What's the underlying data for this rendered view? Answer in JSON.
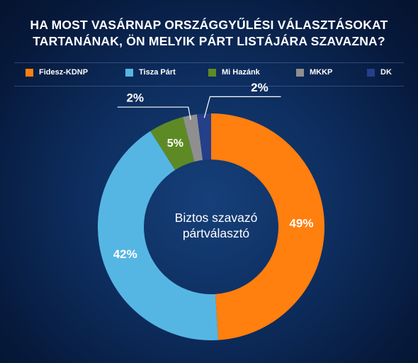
{
  "title_lines": [
    "HA MOST VASÁRNAP ORSZÁGGYŰLÉSI VÁLASZTÁSOKAT",
    "TARTANÁNAK, ÖN MELYIK PÁRT LISTÁJÁRA SZAVAZNA?"
  ],
  "center_label_lines": [
    "Biztos szavazó",
    "pártválasztó"
  ],
  "chart_data": {
    "type": "pie",
    "title": "HA MOST VASÁRNAP ORSZÁGGYŰLÉSI VÁLASZTÁSOKAT TARTANÁNAK, ÖN MELYIK PÁRT LISTÁJÁRA SZAVAZNA?",
    "legend_position": "top",
    "unit": "%",
    "slices": [
      {
        "name": "Fidesz-KDNP",
        "value": 49,
        "label": "49%",
        "color": "#ff7f0f"
      },
      {
        "name": "Tisza Párt",
        "value": 42,
        "label": "42%",
        "color": "#56b6e3"
      },
      {
        "name": "Mi Hazánk",
        "value": 5,
        "label": "5%",
        "color": "#5e8a25"
      },
      {
        "name": "MKKP",
        "value": 2,
        "label": "2%",
        "color": "#8f8f8f"
      },
      {
        "name": "DK",
        "value": 2,
        "label": "2%",
        "color": "#253f8a"
      }
    ]
  }
}
